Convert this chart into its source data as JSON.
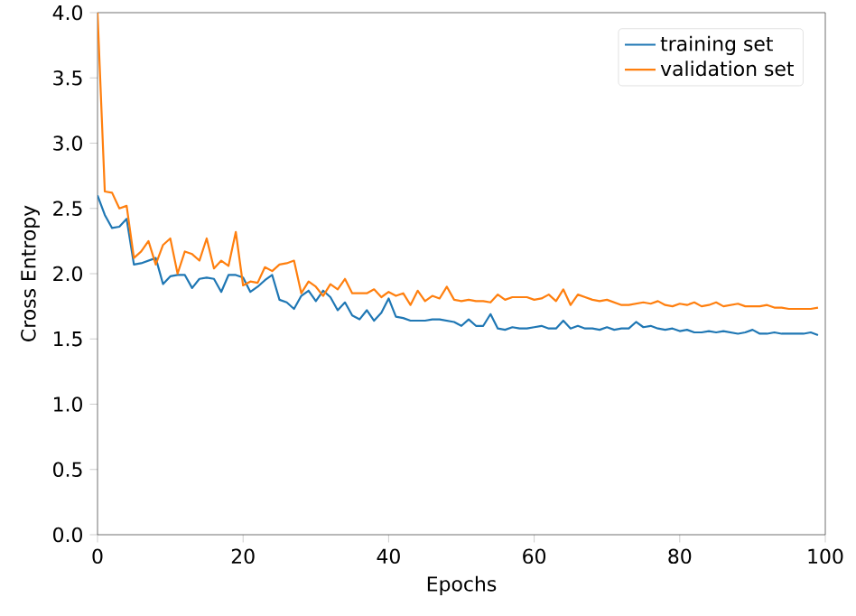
{
  "chart_data": {
    "type": "line",
    "xlabel": "Epochs",
    "ylabel": "Cross Entropy",
    "x": [
      0,
      1,
      2,
      3,
      4,
      5,
      6,
      7,
      8,
      9,
      10,
      11,
      12,
      13,
      14,
      15,
      16,
      17,
      18,
      19,
      20,
      21,
      22,
      23,
      24,
      25,
      26,
      27,
      28,
      29,
      30,
      31,
      32,
      33,
      34,
      35,
      36,
      37,
      38,
      39,
      40,
      41,
      42,
      43,
      44,
      45,
      46,
      47,
      48,
      49,
      50,
      51,
      52,
      53,
      54,
      55,
      56,
      57,
      58,
      59,
      60,
      61,
      62,
      63,
      64,
      65,
      66,
      67,
      68,
      69,
      70,
      71,
      72,
      73,
      74,
      75,
      76,
      77,
      78,
      79,
      80,
      81,
      82,
      83,
      84,
      85,
      86,
      87,
      88,
      89,
      90,
      91,
      92,
      93,
      94,
      95,
      96,
      97,
      98,
      99
    ],
    "series": [
      {
        "name": "training set",
        "color": "#1f77b4",
        "values": [
          2.6,
          2.45,
          2.35,
          2.36,
          2.42,
          2.07,
          2.08,
          2.1,
          2.12,
          1.92,
          1.98,
          1.99,
          1.99,
          1.89,
          1.96,
          1.97,
          1.96,
          1.86,
          1.99,
          1.99,
          1.97,
          1.86,
          1.9,
          1.95,
          1.99,
          1.8,
          1.78,
          1.73,
          1.83,
          1.87,
          1.79,
          1.87,
          1.82,
          1.72,
          1.78,
          1.68,
          1.65,
          1.72,
          1.64,
          1.7,
          1.81,
          1.67,
          1.66,
          1.64,
          1.64,
          1.64,
          1.65,
          1.65,
          1.64,
          1.63,
          1.6,
          1.65,
          1.6,
          1.6,
          1.69,
          1.58,
          1.57,
          1.59,
          1.58,
          1.58,
          1.59,
          1.6,
          1.58,
          1.58,
          1.64,
          1.58,
          1.6,
          1.58,
          1.58,
          1.57,
          1.59,
          1.57,
          1.58,
          1.58,
          1.63,
          1.59,
          1.6,
          1.58,
          1.57,
          1.58,
          1.56,
          1.57,
          1.55,
          1.55,
          1.56,
          1.55,
          1.56,
          1.55,
          1.54,
          1.55,
          1.57,
          1.54,
          1.54,
          1.55,
          1.54,
          1.54,
          1.54,
          1.54,
          1.55,
          1.53
        ]
      },
      {
        "name": "validation set",
        "color": "#ff7f0e",
        "values": [
          4.0,
          2.63,
          2.62,
          2.5,
          2.52,
          2.12,
          2.17,
          2.25,
          2.07,
          2.22,
          2.27,
          2.0,
          2.17,
          2.15,
          2.1,
          2.27,
          2.04,
          2.1,
          2.06,
          2.32,
          1.91,
          1.94,
          1.93,
          2.05,
          2.02,
          2.07,
          2.08,
          2.1,
          1.85,
          1.94,
          1.9,
          1.83,
          1.92,
          1.88,
          1.96,
          1.85,
          1.85,
          1.85,
          1.88,
          1.82,
          1.86,
          1.83,
          1.85,
          1.76,
          1.87,
          1.79,
          1.83,
          1.81,
          1.9,
          1.8,
          1.79,
          1.8,
          1.79,
          1.79,
          1.78,
          1.84,
          1.8,
          1.82,
          1.82,
          1.82,
          1.8,
          1.81,
          1.84,
          1.79,
          1.88,
          1.76,
          1.84,
          1.82,
          1.8,
          1.79,
          1.8,
          1.78,
          1.76,
          1.76,
          1.77,
          1.78,
          1.77,
          1.79,
          1.76,
          1.75,
          1.77,
          1.76,
          1.78,
          1.75,
          1.76,
          1.78,
          1.75,
          1.76,
          1.77,
          1.75,
          1.75,
          1.75,
          1.76,
          1.74,
          1.74,
          1.73,
          1.73,
          1.73,
          1.73,
          1.74
        ]
      }
    ],
    "xlim": [
      0,
      100
    ],
    "ylim": [
      0,
      4.0
    ],
    "xticks": [
      0,
      20,
      40,
      60,
      80,
      100
    ],
    "yticks": [
      {
        "value": 0,
        "label": "0.0"
      },
      {
        "value": 0.5,
        "label": "0.5"
      },
      {
        "value": 1,
        "label": "1.0"
      },
      {
        "value": 1.5,
        "label": "1.5"
      },
      {
        "value": 2,
        "label": "2.0"
      },
      {
        "value": 2.5,
        "label": "2.5"
      },
      {
        "value": 3,
        "label": "3.0"
      },
      {
        "value": 3.5,
        "label": "3.5"
      },
      {
        "value": 4,
        "label": "4.0"
      }
    ],
    "legend": "top right",
    "grid": false,
    "marker": "none",
    "line_style": "solid"
  }
}
